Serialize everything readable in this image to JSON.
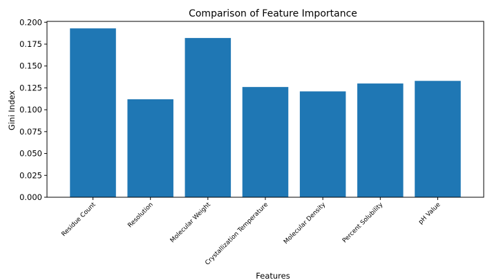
{
  "chart_data": {
    "type": "bar",
    "title": "Comparison of Feature Importance",
    "xlabel": "Features",
    "ylabel": "Gini Index",
    "categories": [
      "Residue Count",
      "Resolution",
      "Molecular Weight",
      "Crystallization Temperature",
      "Molecular Density",
      "Percent Solubility",
      "pH Value"
    ],
    "values": [
      0.193,
      0.112,
      0.182,
      0.126,
      0.121,
      0.13,
      0.133
    ],
    "ylim": [
      0,
      0.201
    ],
    "yticks": [
      0.0,
      0.025,
      0.05,
      0.075,
      0.1,
      0.125,
      0.15,
      0.175,
      0.2
    ],
    "ytick_labels": [
      "0.000",
      "0.025",
      "0.050",
      "0.075",
      "0.100",
      "0.125",
      "0.150",
      "0.175",
      "0.200"
    ],
    "bar_color": "#1f77b4",
    "grid": false,
    "legend": "none"
  }
}
